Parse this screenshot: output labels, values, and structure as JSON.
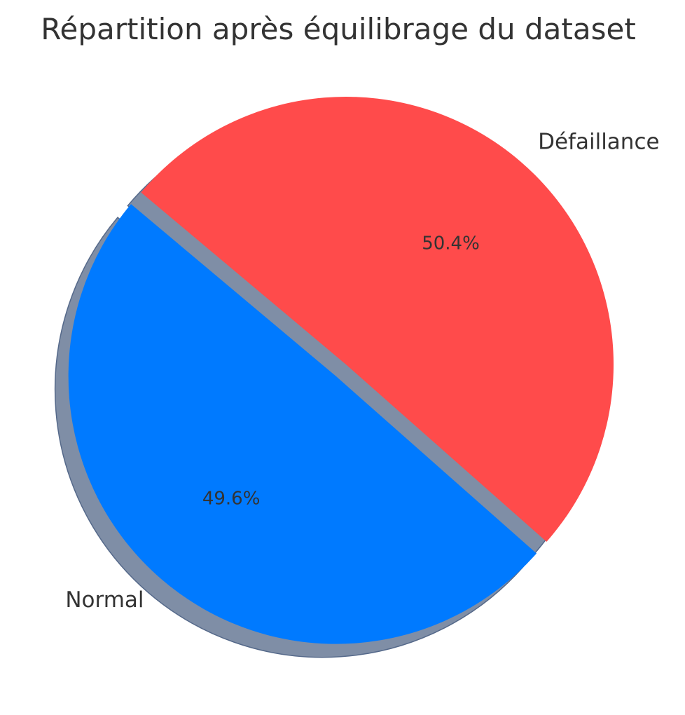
{
  "chart_data": {
    "type": "pie",
    "title": "Répartition après équilibrage du dataset",
    "slices": [
      {
        "label": "Normal",
        "value": 49.6,
        "pct_label": "49.6%",
        "color": "#007AFF",
        "exploded": true
      },
      {
        "label": "Défaillance",
        "value": 50.4,
        "pct_label": "50.4%",
        "color": "#FF4B4B",
        "exploded": false
      }
    ],
    "start_angle_deg": 140,
    "shadow": true,
    "legend": "none",
    "colors": {
      "text": "#333333",
      "shadow": "#7f8ea6",
      "background": "#ffffff"
    }
  }
}
